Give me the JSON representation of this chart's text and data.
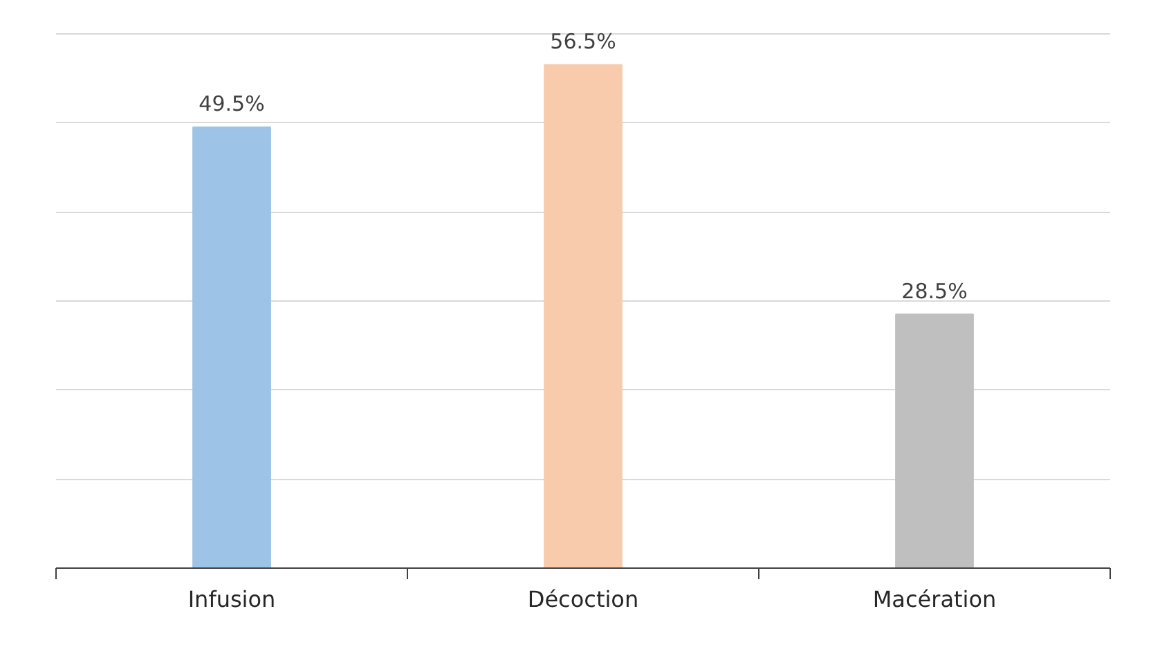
{
  "chart_data": {
    "type": "bar",
    "categories": [
      "Infusion",
      "Décoction",
      "Macération"
    ],
    "values": [
      49.5,
      56.5,
      28.5
    ],
    "colors": [
      "#9dc3e6",
      "#f8cbad",
      "#bfbfbf"
    ],
    "value_labels": [
      "49.5%",
      "56.5%",
      "28.5%"
    ],
    "ylim": [
      0,
      60
    ],
    "yticks": [
      {
        "value": 0,
        "label": null
      },
      {
        "value": 10,
        "label": null
      },
      {
        "value": 20,
        "label": null
      },
      {
        "value": 30,
        "label": null
      },
      {
        "value": 40,
        "label": null
      },
      {
        "value": 50,
        "label": null
      },
      {
        "value": 60,
        "label": null
      }
    ],
    "tick_labels": "x",
    "grid": "y"
  }
}
